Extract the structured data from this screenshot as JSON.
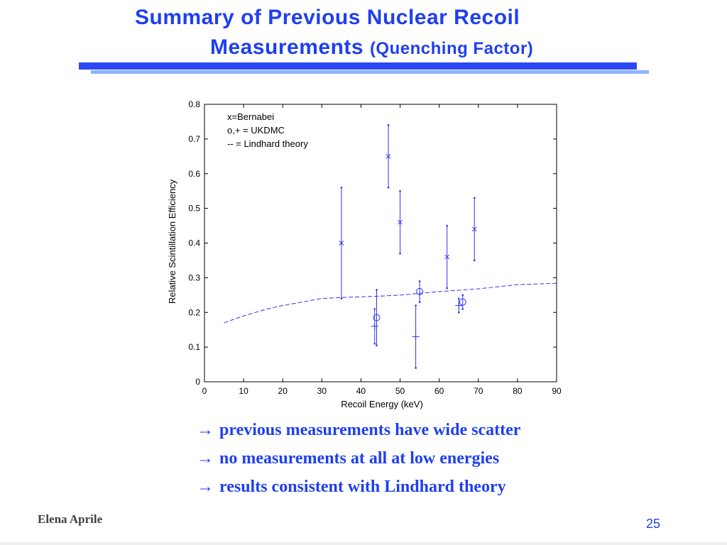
{
  "slide": {
    "title_line1": "Summary of Previous Nuclear Recoil",
    "title_line2_main": "Measurements",
    "title_line2_sub": "(Quenching Factor)",
    "bullets": [
      {
        "arrow": "→",
        "text": "previous measurements have wide scatter"
      },
      {
        "arrow": "→",
        "text": "no measurements at all at  low energies"
      },
      {
        "arrow": "→",
        "text": "results consistent with Lindhard theory"
      }
    ],
    "author": "Elena Aprile",
    "page_number": "25",
    "colors": {
      "title": "#1f3ff0",
      "bar_dark": "#2b48f5",
      "bar_light": "#8fb2ff",
      "plot": "#3333ee"
    }
  },
  "chart_data": {
    "type": "scatter",
    "title": "",
    "xlabel": "Recoil Energy (keV)",
    "ylabel": "Relative Scintillation Efficiency",
    "xlim": [
      0,
      90
    ],
    "ylim": [
      0,
      0.8
    ],
    "xticks": [
      "0",
      "10",
      "20",
      "30",
      "40",
      "50",
      "60",
      "70",
      "80",
      "90"
    ],
    "yticks": [
      "0",
      "0.1",
      "0.2",
      "0.3",
      "0.4",
      "0.5",
      "0.6",
      "0.7",
      "0.8"
    ],
    "grid": false,
    "legend_lines": [
      "x=Bernabei",
      "o,+ = UKDMC",
      "-- = Lindhard theory"
    ],
    "legend_position": "top-left",
    "series": [
      {
        "name": "Bernabei",
        "marker": "x",
        "points": [
          {
            "x": 35,
            "y": 0.4,
            "lo": 0.24,
            "hi": 0.56
          },
          {
            "x": 47,
            "y": 0.65,
            "lo": 0.56,
            "hi": 0.74
          },
          {
            "x": 50,
            "y": 0.46,
            "lo": 0.37,
            "hi": 0.55
          },
          {
            "x": 62,
            "y": 0.36,
            "lo": 0.27,
            "hi": 0.45
          },
          {
            "x": 69,
            "y": 0.44,
            "lo": 0.35,
            "hi": 0.53
          }
        ]
      },
      {
        "name": "UKDMC (o)",
        "marker": "o",
        "points": [
          {
            "x": 44,
            "y": 0.185,
            "lo": 0.105,
            "hi": 0.265
          },
          {
            "x": 55,
            "y": 0.26,
            "lo": 0.23,
            "hi": 0.29
          },
          {
            "x": 66,
            "y": 0.23,
            "lo": 0.21,
            "hi": 0.25
          }
        ]
      },
      {
        "name": "UKDMC (+)",
        "marker": "+",
        "points": [
          {
            "x": 43.5,
            "y": 0.16,
            "lo": 0.11,
            "hi": 0.21
          },
          {
            "x": 54,
            "y": 0.13,
            "lo": 0.04,
            "hi": 0.22
          },
          {
            "x": 65,
            "y": 0.22,
            "lo": 0.2,
            "hi": 0.24
          }
        ]
      },
      {
        "name": "Lindhard theory",
        "line_style": "dashed",
        "x": [
          5,
          10,
          16,
          20,
          25,
          30,
          35,
          40,
          45,
          50,
          55,
          60,
          65,
          70,
          75,
          80,
          85,
          90
        ],
        "y": [
          0.17,
          0.19,
          0.21,
          0.22,
          0.23,
          0.24,
          0.243,
          0.245,
          0.247,
          0.25,
          0.255,
          0.26,
          0.264,
          0.268,
          0.274,
          0.28,
          0.282,
          0.284
        ]
      }
    ]
  }
}
